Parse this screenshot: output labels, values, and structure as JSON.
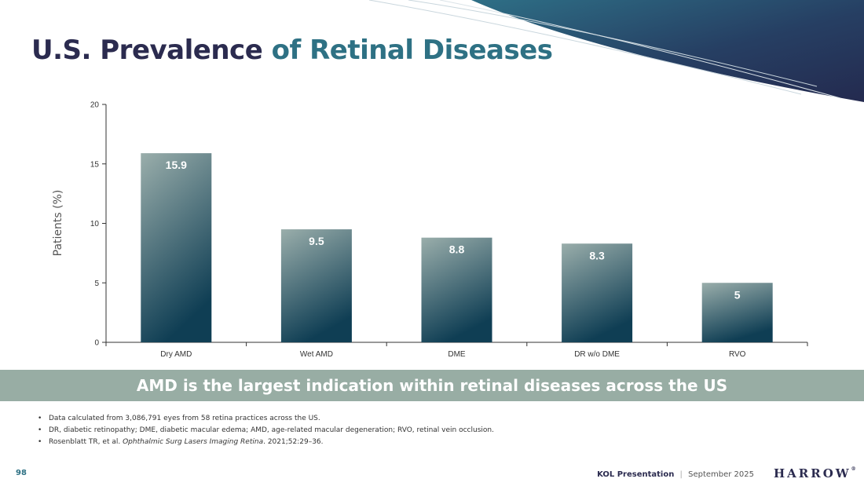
{
  "title": {
    "part1": "U.S. Prevalence",
    "part2": "of Retinal Diseases"
  },
  "colors": {
    "title_dark": "#2b2b4f",
    "title_accent": "#2e7184",
    "banner_bg": "#98ada4",
    "bar_top": "#9aaeab",
    "bar_bottom": "#0f3e54"
  },
  "chart_data": {
    "type": "bar",
    "categories": [
      "Dry AMD",
      "Wet AMD",
      "DME",
      "DR w/o DME",
      "RVO"
    ],
    "values": [
      15.9,
      9.5,
      8.8,
      8.3,
      5
    ],
    "value_labels": [
      "15.9",
      "9.5",
      "8.8",
      "8.3",
      "5"
    ],
    "ylabel": "Patients (%)",
    "xlabel": "",
    "ylim": [
      0,
      20
    ],
    "yticks": [
      0,
      5,
      10,
      15,
      20
    ],
    "grid": false
  },
  "banner": {
    "text": "AMD is the largest indication within retinal diseases across the US"
  },
  "notes": {
    "n1": "Data calculated from 3,086,791 eyes from 58 retina practices across the US.",
    "n2": "DR, diabetic retinopathy; DME, diabetic macular edema; AMD, age-related macular degeneration; RVO, retinal vein occlusion.",
    "n3a": "Rosenblatt TR, et al.",
    "n3b": "Ophthalmic Surg Lasers Imaging Retina",
    "n3c": ". 2021;52:29–36."
  },
  "footer": {
    "page": "98",
    "presentation": "KOL Presentation",
    "separator": "|",
    "date": "September 2025",
    "logo": "HARROW",
    "logo_mark": "®"
  }
}
